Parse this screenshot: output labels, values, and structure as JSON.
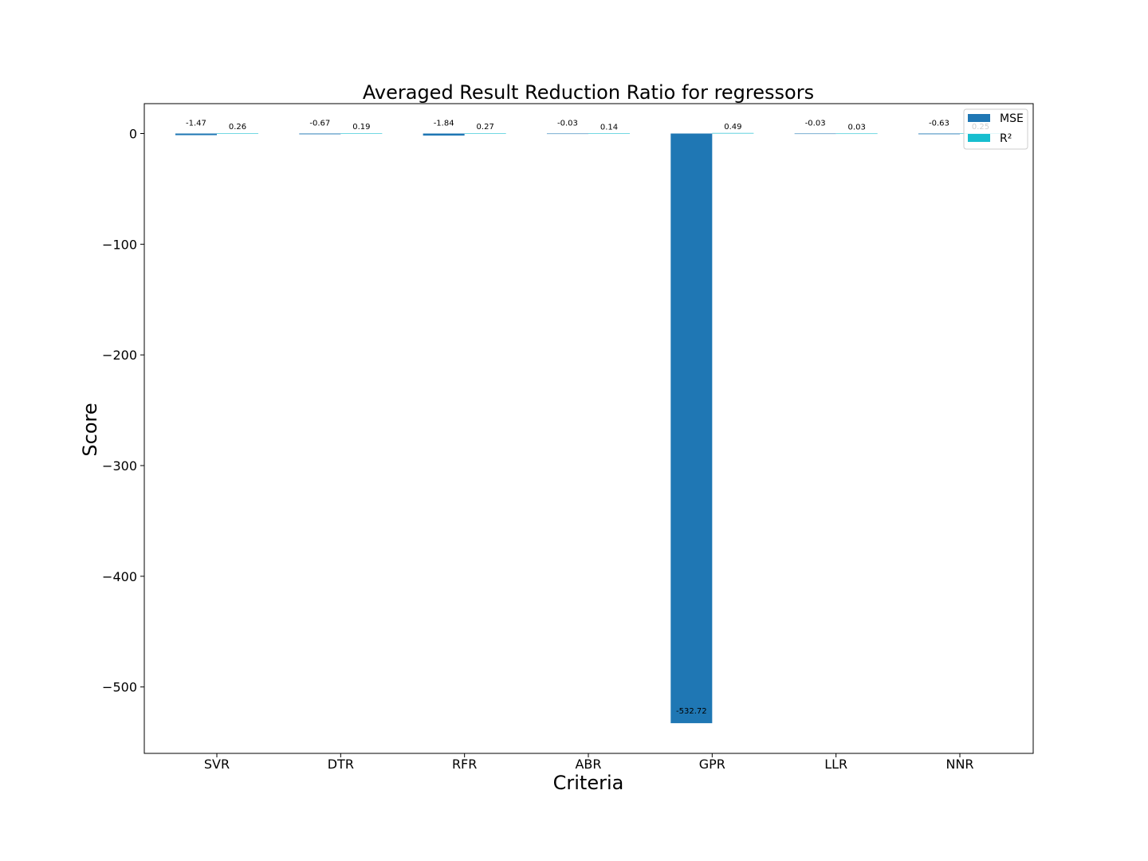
{
  "chart_data": {
    "type": "bar",
    "title": "Averaged Result Reduction Ratio for regressors",
    "xlabel": "Criteria",
    "ylabel": "Score",
    "categories": [
      "SVR",
      "DTR",
      "RFR",
      "ABR",
      "GPR",
      "LLR",
      "NNR"
    ],
    "series": [
      {
        "name": "MSE",
        "values": [
          -1.47,
          -0.67,
          -1.84,
          -0.03,
          -532.72,
          -0.03,
          -0.63
        ],
        "labels": [
          "-1.47",
          "-0.67",
          "-1.84",
          "-0.03",
          "-532.72",
          "-0.03",
          "-0.63"
        ],
        "color": "#1f77b4"
      },
      {
        "name": "R²",
        "values": [
          0.26,
          0.19,
          0.27,
          0.14,
          0.49,
          0.03,
          0.25
        ],
        "labels": [
          "0.26",
          "0.19",
          "0.27",
          "0.14",
          "0.49",
          "0.03",
          "0.25"
        ],
        "color": "#17becf"
      }
    ],
    "ylim": [
      -560,
      27
    ],
    "yticks": [
      0,
      -100,
      -200,
      -300,
      -400,
      -500
    ],
    "ytick_labels": [
      "0",
      "−100",
      "−200",
      "−300",
      "−400",
      "−500"
    ],
    "grid": false,
    "legend": "top-right"
  }
}
